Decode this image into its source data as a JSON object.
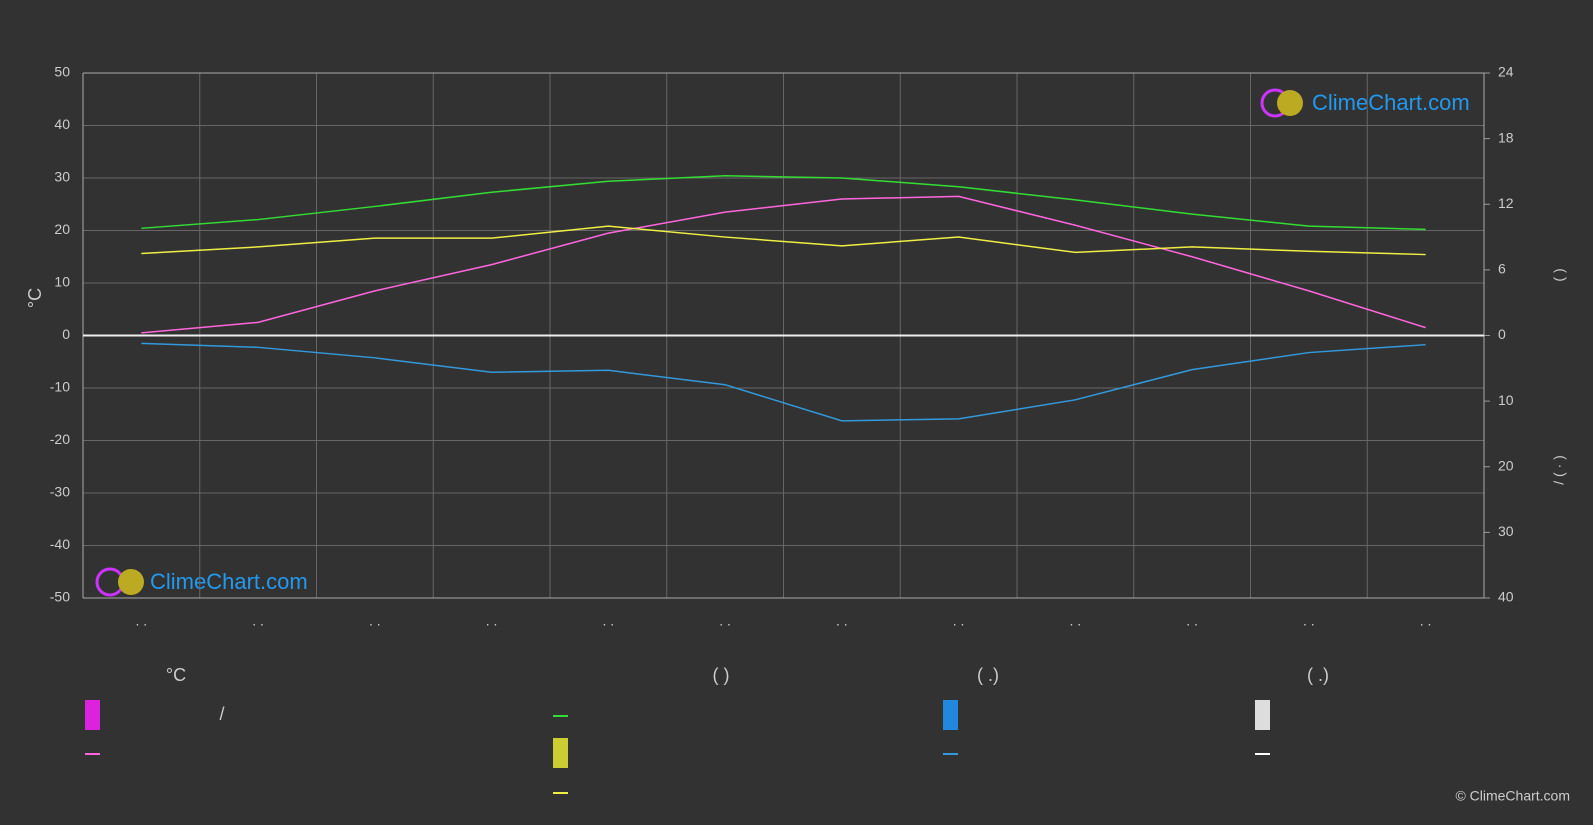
{
  "chart_data": {
    "type": "line",
    "y_label": "°C",
    "categories": [
      ". .",
      ". .",
      ". .",
      ". .",
      ". .",
      ". .",
      ". .",
      ". .",
      ". .",
      ". .",
      ". .",
      ". ."
    ],
    "ylim": [
      -50,
      50
    ],
    "yticks": [
      -50,
      -40,
      -30,
      -20,
      -10,
      0,
      10,
      20,
      30,
      40,
      50
    ],
    "hours_axis": {
      "lim": [
        0,
        24
      ],
      "ticks": [
        0,
        6,
        12,
        18,
        24
      ],
      "label": "(      )"
    },
    "precip_axis": {
      "lim": [
        0,
        40
      ],
      "ticks": [
        10,
        20,
        30,
        40
      ],
      "label": "/          (  ·  )"
    },
    "grid": true,
    "series": [
      {
        "color": "#ff66dd",
        "axis": "y",
        "values": [
          0.5,
          2.5,
          8.5,
          13.5,
          19.5,
          23.5,
          26,
          26.5,
          21,
          15,
          8.5,
          1.5
        ]
      },
      {
        "color": "#33dd33",
        "axis": "hours",
        "values": [
          9.8,
          10.6,
          11.8,
          13.1,
          14.1,
          14.6,
          14.4,
          13.6,
          12.4,
          11.1,
          10.0,
          9.7
        ]
      },
      {
        "color": "#eeee44",
        "axis": "hours",
        "values": [
          7.5,
          8.1,
          8.9,
          8.9,
          10.0,
          9.0,
          8.2,
          9.0,
          7.6,
          8.1,
          7.7,
          7.4
        ]
      },
      {
        "color": "#3399dd",
        "axis": "precip",
        "values": [
          1.2,
          1.8,
          3.4,
          5.6,
          5.3,
          7.5,
          13.0,
          12.7,
          9.8,
          5.2,
          2.6,
          1.4
        ]
      }
    ],
    "legend": {
      "headers": [
        "°C",
        "(          )",
        "(   .)",
        "(   .)"
      ],
      "slash": "/"
    },
    "logo_text": "ClimeChart.com",
    "copyright": "© ClimeChart.com"
  }
}
